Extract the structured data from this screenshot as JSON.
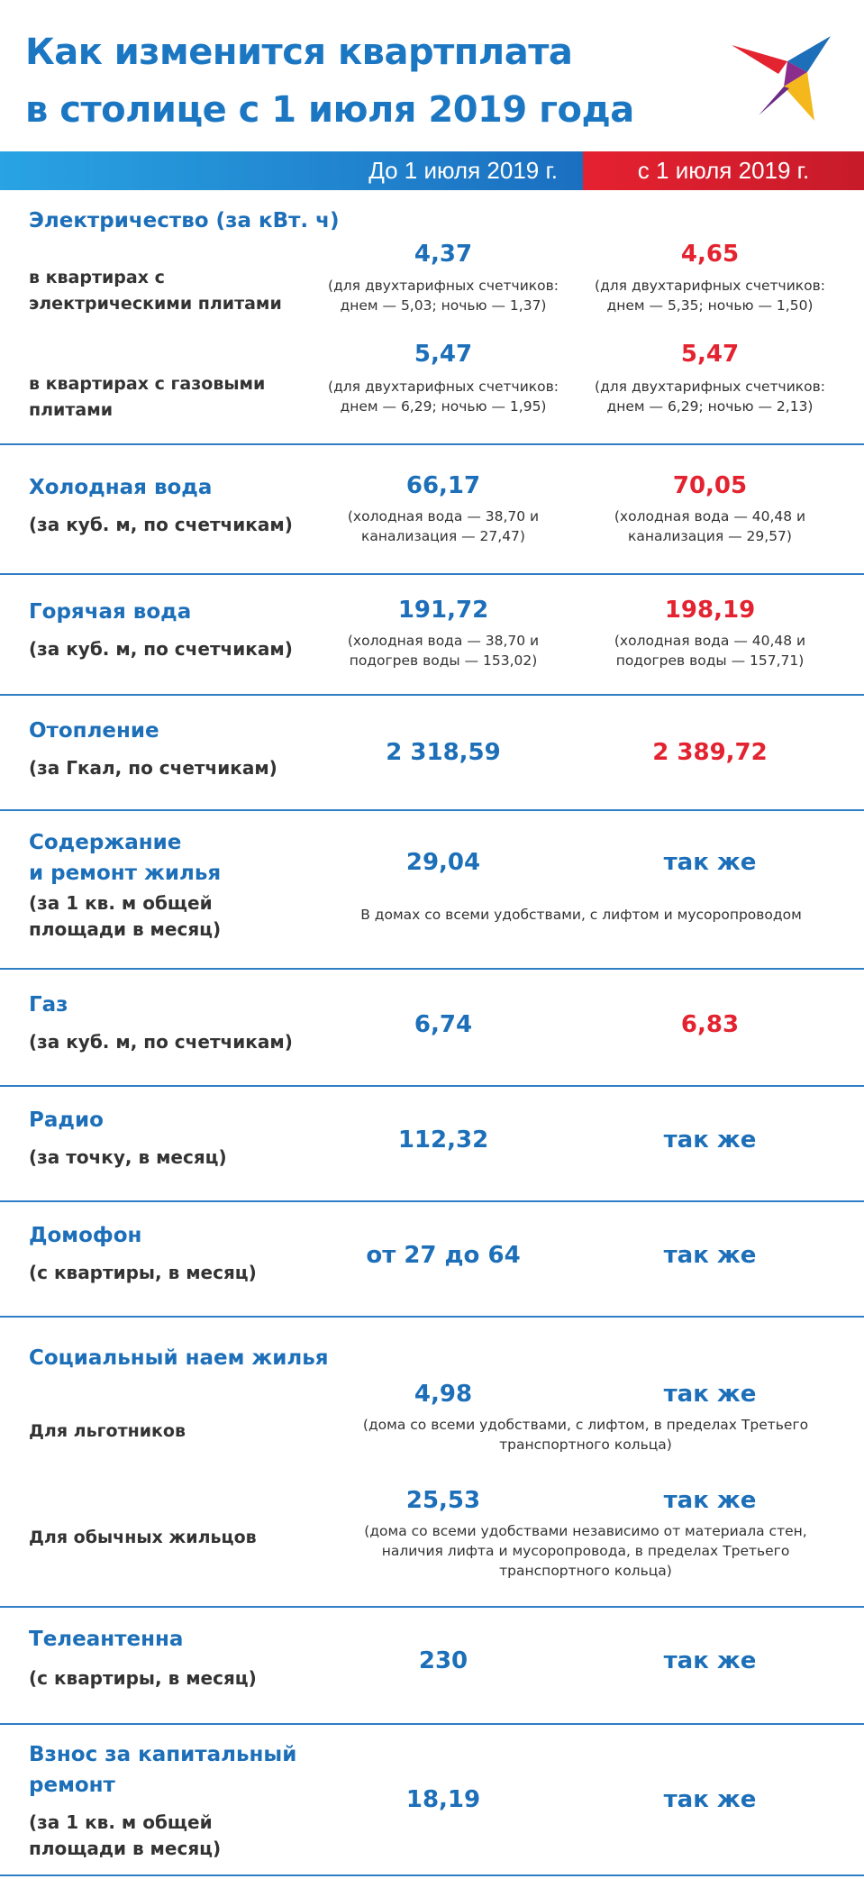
{
  "title": [
    "Как изменится квартплата",
    "в столице с 1 июля 2019 года"
  ],
  "header": {
    "before": "До 1 июля 2019 г.",
    "after": "с 1 июля 2019 г."
  },
  "electricity": {
    "title": "Электричество (за кВт. ч)",
    "electric": {
      "label": "в квартирах с электрическими плитами",
      "before": "4,37",
      "before_note": "(для двухтарифных счетчиков: днем — 5,03; ночью — 1,37)",
      "after": "4,65",
      "after_note": "(для двухтарифных счетчиков: днем — 5,35; ночью — 1,50)"
    },
    "gas": {
      "label": "в квартирах с газовыми плитами",
      "before": "5,47",
      "before_note": "(для двухтарифных счетчиков: днем — 6,29; ночью — 1,95)",
      "after": "5,47",
      "after_note": "(для двухтарифных счетчиков: днем — 6,29; ночью — 2,13)"
    }
  },
  "cold_water": {
    "title": "Холодная вода",
    "sub": "(за куб. м, по счетчикам)",
    "before": "66,17",
    "before_note": "(холодная вода — 38,70 и канализация — 27,47)",
    "after": "70,05",
    "after_note": "(холодная вода — 40,48 и канализация — 29,57)"
  },
  "hot_water": {
    "title": "Горячая вода",
    "sub": "(за куб. м, по счетчикам)",
    "before": "191,72",
    "before_note": "(холодная вода — 38,70 и подогрев воды — 153,02)",
    "after": "198,19",
    "after_note": "(холодная вода — 40,48 и подогрев воды — 157,71)"
  },
  "heating": {
    "title": "Отопление",
    "sub": "(за Гкал, по счетчикам)",
    "before": "2 318,59",
    "after": "2 389,72"
  },
  "maintenance": {
    "title": [
      "Содержание",
      "и ремонт жилья"
    ],
    "sub": [
      "(за 1 кв. м общей",
      "площади в месяц)"
    ],
    "before": "29,04",
    "after": "так же",
    "note": "В домах со всеми удобствами, с лифтом и мусоропроводом"
  },
  "gas": {
    "title": "Газ",
    "sub": "(за куб. м, по счетчикам)",
    "before": "6,74",
    "after": "6,83"
  },
  "radio": {
    "title": "Радио",
    "sub": "(за точку, в месяц)",
    "before": "112,32",
    "after": "так же"
  },
  "intercom": {
    "title": "Домофон",
    "sub": "(с квартиры, в месяц)",
    "before": "от 27 до 64",
    "after": "так же"
  },
  "social_rent": {
    "title": "Социальный наем жилья",
    "beneficiaries": {
      "label": "Для льготников",
      "before": "4,98",
      "after": "так же",
      "note": [
        "(дома со всеми удобствами, с лифтом, в пределах Третьего",
        "транспортного кольца)"
      ]
    },
    "regular": {
      "label": "Для обычных жильцов",
      "before": "25,53",
      "after": "так же",
      "note": [
        "(дома со всеми удобствами независимо от материала стен,",
        "наличия лифта и мусоропровода, в пределах Третьего",
        "транспортного кольца)"
      ]
    }
  },
  "antenna": {
    "title": "Телеантенна",
    "sub": "(с квартиры, в месяц)",
    "before": "230",
    "after": "так же"
  },
  "capital_repair": {
    "title": [
      "Взнос за капитальный",
      "ремонт"
    ],
    "sub": [
      "(за 1 кв. м общей",
      "площади в месяц)"
    ],
    "before": "18,19",
    "after": "так же"
  },
  "colors": {
    "blue": "#1c6fb8",
    "red": "#e3232f",
    "band_left": "#1b6fc0",
    "band_right": "#d81f2d"
  },
  "logo_icon": "bird-logo-icon"
}
